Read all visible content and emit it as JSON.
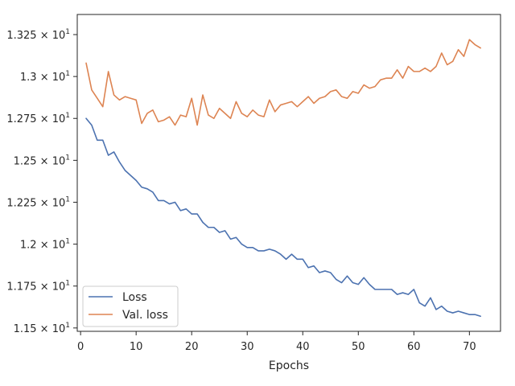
{
  "chart_data": {
    "type": "line",
    "title": "",
    "xlabel": "Epochs",
    "ylabel": "",
    "xlim": [
      -0.6,
      75.6
    ],
    "ylim": [
      11.48,
      13.37
    ],
    "x_ticks": [
      0,
      10,
      20,
      30,
      40,
      50,
      60,
      70
    ],
    "y_ticks": [
      {
        "value": 11.5,
        "mantissa": "1.15",
        "base": "10",
        "exponent": "1"
      },
      {
        "value": 11.75,
        "mantissa": "1.175",
        "base": "10",
        "exponent": "1"
      },
      {
        "value": 12.0,
        "mantissa": "1.2",
        "base": "10",
        "exponent": "1"
      },
      {
        "value": 12.25,
        "mantissa": "1.225",
        "base": "10",
        "exponent": "1"
      },
      {
        "value": 12.5,
        "mantissa": "1.25",
        "base": "10",
        "exponent": "1"
      },
      {
        "value": 12.75,
        "mantissa": "1.275",
        "base": "10",
        "exponent": "1"
      },
      {
        "value": 13.0,
        "mantissa": "1.3",
        "base": "10",
        "exponent": "1"
      },
      {
        "value": 13.25,
        "mantissa": "1.325",
        "base": "10",
        "exponent": "1"
      }
    ],
    "y_tick_times_symbol": "×",
    "grid": false,
    "legend_position": "lower-left",
    "x": [
      1,
      2,
      3,
      4,
      5,
      6,
      7,
      8,
      9,
      10,
      11,
      12,
      13,
      14,
      15,
      16,
      17,
      18,
      19,
      20,
      21,
      22,
      23,
      24,
      25,
      26,
      27,
      28,
      29,
      30,
      31,
      32,
      33,
      34,
      35,
      36,
      37,
      38,
      39,
      40,
      41,
      42,
      43,
      44,
      45,
      46,
      47,
      48,
      49,
      50,
      51,
      52,
      53,
      54,
      55,
      56,
      57,
      58,
      59,
      60,
      61,
      62,
      63,
      64,
      65,
      66,
      67,
      68,
      69,
      70,
      71,
      72
    ],
    "series": [
      {
        "name": "Loss",
        "color": "#4c72b0",
        "values": [
          12.75,
          12.71,
          12.62,
          12.62,
          12.53,
          12.55,
          12.49,
          12.44,
          12.41,
          12.38,
          12.34,
          12.33,
          12.31,
          12.26,
          12.26,
          12.24,
          12.25,
          12.2,
          12.21,
          12.18,
          12.18,
          12.13,
          12.1,
          12.1,
          12.07,
          12.08,
          12.03,
          12.04,
          12.0,
          11.98,
          11.98,
          11.96,
          11.96,
          11.97,
          11.96,
          11.94,
          11.91,
          11.94,
          11.91,
          11.91,
          11.86,
          11.87,
          11.83,
          11.84,
          11.83,
          11.79,
          11.77,
          11.81,
          11.77,
          11.76,
          11.8,
          11.76,
          11.73,
          11.73,
          11.73,
          11.73,
          11.7,
          11.71,
          11.7,
          11.73,
          11.65,
          11.63,
          11.68,
          11.61,
          11.63,
          11.6,
          11.59,
          11.6,
          11.59,
          11.58,
          11.58,
          11.57
        ]
      },
      {
        "name": "Val. loss",
        "color": "#dd8452",
        "values": [
          13.08,
          12.92,
          12.87,
          12.82,
          13.03,
          12.89,
          12.86,
          12.88,
          12.87,
          12.86,
          12.72,
          12.78,
          12.8,
          12.73,
          12.74,
          12.76,
          12.71,
          12.77,
          12.76,
          12.87,
          12.71,
          12.89,
          12.77,
          12.75,
          12.81,
          12.78,
          12.75,
          12.85,
          12.78,
          12.76,
          12.8,
          12.77,
          12.76,
          12.86,
          12.79,
          12.83,
          12.84,
          12.85,
          12.82,
          12.85,
          12.88,
          12.84,
          12.87,
          12.88,
          12.91,
          12.92,
          12.88,
          12.87,
          12.91,
          12.9,
          12.95,
          12.93,
          12.94,
          12.98,
          12.99,
          12.99,
          13.04,
          12.99,
          13.06,
          13.03,
          13.03,
          13.05,
          13.03,
          13.06,
          13.14,
          13.07,
          13.09,
          13.16,
          13.12,
          13.22,
          13.19,
          13.17
        ]
      }
    ]
  }
}
